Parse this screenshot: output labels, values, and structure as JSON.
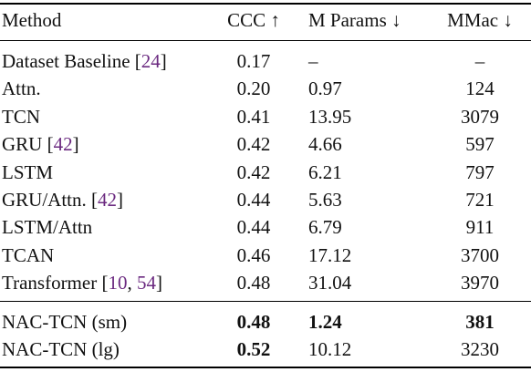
{
  "table": {
    "headers": {
      "method": "Method",
      "ccc": "CCC ↑",
      "params": "M Params ↓",
      "mmac": "MMac ↓"
    },
    "rows": [
      {
        "method": "Dataset Baseline",
        "refs": [
          "24"
        ],
        "ccc": "0.17",
        "params": "–",
        "mmac": "–"
      },
      {
        "method": "Attn.",
        "refs": [],
        "ccc": "0.20",
        "params": "0.97",
        "mmac": "124"
      },
      {
        "method": "TCN",
        "refs": [],
        "ccc": "0.41",
        "params": "13.95",
        "mmac": "3079"
      },
      {
        "method": "GRU",
        "refs": [
          "42"
        ],
        "ccc": "0.42",
        "params": "4.66",
        "mmac": "597"
      },
      {
        "method": "LSTM",
        "refs": [],
        "ccc": "0.42",
        "params": "6.21",
        "mmac": "797"
      },
      {
        "method": "GRU/Attn.",
        "refs": [
          "42"
        ],
        "ccc": "0.44",
        "params": "5.63",
        "mmac": "721"
      },
      {
        "method": "LSTM/Attn",
        "refs": [],
        "ccc": "0.44",
        "params": "6.79",
        "mmac": "911"
      },
      {
        "method": "TCAN",
        "refs": [],
        "ccc": "0.46",
        "params": "17.12",
        "mmac": "3700"
      },
      {
        "method": "Transformer",
        "refs": [
          "10",
          "54"
        ],
        "ccc": "0.48",
        "params": "31.04",
        "mmac": "3970"
      }
    ],
    "ours": [
      {
        "method": "NAC-TCN (sm)",
        "ccc": "0.48",
        "params": "1.24",
        "mmac": "381",
        "bold": [
          "ccc",
          "params",
          "mmac"
        ]
      },
      {
        "method": "NAC-TCN (lg)",
        "ccc": "0.52",
        "params": "10.12",
        "mmac": "3230",
        "bold": [
          "ccc"
        ]
      }
    ]
  },
  "colors": {
    "citation": "#6b2a80",
    "text": "#111111",
    "rule": "#000000"
  }
}
